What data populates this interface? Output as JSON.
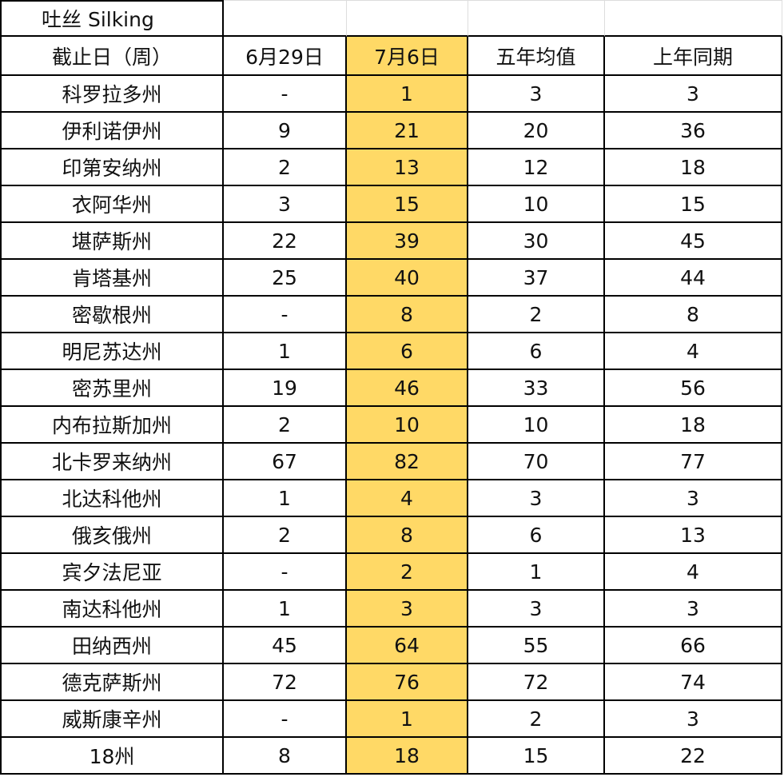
{
  "title": "吐丝 Silking",
  "highlight_color": "#FFD966",
  "headers": [
    "截止日（周）",
    "6月29日",
    "7月6日",
    "五年均值",
    "上年同期"
  ],
  "rows": [
    [
      "科罗拉多州",
      "-",
      "1",
      "3",
      "3"
    ],
    [
      "伊利诺伊州",
      "9",
      "21",
      "20",
      "36"
    ],
    [
      "印第安纳州",
      "2",
      "13",
      "12",
      "18"
    ],
    [
      "衣阿华州",
      "3",
      "15",
      "10",
      "15"
    ],
    [
      "堪萨斯州",
      "22",
      "39",
      "30",
      "45"
    ],
    [
      "肯塔基州",
      "25",
      "40",
      "37",
      "44"
    ],
    [
      "密歇根州",
      "-",
      "8",
      "2",
      "8"
    ],
    [
      "明尼苏达州",
      "1",
      "6",
      "6",
      "4"
    ],
    [
      "密苏里州",
      "19",
      "46",
      "33",
      "56"
    ],
    [
      "内布拉斯加州",
      "2",
      "10",
      "10",
      "18"
    ],
    [
      "北卡罗来纳州",
      "67",
      "82",
      "70",
      "77"
    ],
    [
      "北达科他州",
      "1",
      "4",
      "3",
      "3"
    ],
    [
      "俄亥俄州",
      "2",
      "8",
      "6",
      "13"
    ],
    [
      "宾夕法尼亚",
      "-",
      "2",
      "1",
      "4"
    ],
    [
      "南达科他州",
      "1",
      "3",
      "3",
      "3"
    ],
    [
      "田纳西州",
      "45",
      "64",
      "55",
      "66"
    ],
    [
      "德克萨斯州",
      "72",
      "76",
      "72",
      "74"
    ],
    [
      "威斯康辛州",
      "-",
      "1",
      "2",
      "3"
    ],
    [
      "18州",
      "8",
      "18",
      "15",
      "22"
    ]
  ]
}
